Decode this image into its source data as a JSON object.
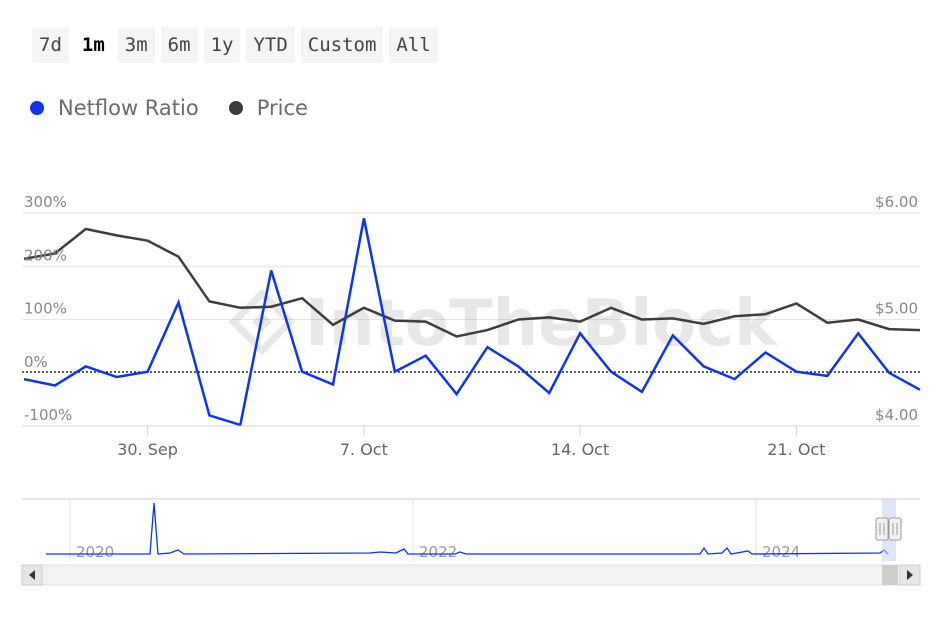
{
  "range_buttons": [
    {
      "label": "7d"
    },
    {
      "label": "1m",
      "active": true
    },
    {
      "label": "3m"
    },
    {
      "label": "6m"
    },
    {
      "label": "1y"
    },
    {
      "label": "YTD"
    },
    {
      "label": "Custom"
    },
    {
      "label": "All"
    }
  ],
  "watermark": "IntoTheBlock",
  "colors": {
    "netflow": "#1133ee",
    "price": "#3d3d3d",
    "grid": "#e6e6e6",
    "zero_line": "#000000"
  },
  "chart_data": {
    "type": "line",
    "x_ticks": [
      "30. Sep",
      "7. Oct",
      "14. Oct",
      "21. Oct"
    ],
    "y_left": {
      "ticks": [
        "300%",
        "200%",
        "100%",
        "0%",
        "-100%"
      ],
      "range": [
        -100,
        300
      ]
    },
    "y_right": {
      "ticks": [
        "$6.00",
        "$5.00",
        "$4.00"
      ],
      "range": [
        4.0,
        6.0
      ]
    },
    "x": [
      "2024-09-26",
      "2024-09-27",
      "2024-09-28",
      "2024-09-29",
      "2024-09-30",
      "2024-10-01",
      "2024-10-02",
      "2024-10-03",
      "2024-10-04",
      "2024-10-05",
      "2024-10-06",
      "2024-10-07",
      "2024-10-08",
      "2024-10-09",
      "2024-10-10",
      "2024-10-11",
      "2024-10-12",
      "2024-10-13",
      "2024-10-14",
      "2024-10-15",
      "2024-10-16",
      "2024-10-17",
      "2024-10-18",
      "2024-10-19",
      "2024-10-20",
      "2024-10-21",
      "2024-10-22",
      "2024-10-23",
      "2024-10-24",
      "2024-10-25"
    ],
    "series": [
      {
        "name": "Netflow Ratio",
        "axis": "left",
        "values": [
          -12,
          -24,
          12,
          -8,
          2,
          132,
          -80,
          -98,
          192,
          2,
          -22,
          290,
          2,
          32,
          -40,
          48,
          12,
          -38,
          74,
          2,
          -36,
          70,
          12,
          -12,
          38,
          2,
          -6,
          74,
          0,
          -32
        ]
      },
      {
        "name": "Price",
        "axis": "right",
        "values": [
          5.57,
          5.62,
          5.85,
          5.79,
          5.74,
          5.59,
          5.17,
          5.11,
          5.12,
          5.2,
          4.95,
          5.11,
          4.99,
          4.98,
          4.84,
          4.9,
          5.0,
          5.02,
          4.98,
          5.11,
          5.0,
          5.01,
          4.96,
          5.03,
          5.05,
          5.15,
          4.97,
          5.0,
          4.91,
          4.9
        ]
      }
    ],
    "navigator": {
      "year_labels": [
        "2020",
        "2022",
        "2024"
      ]
    },
    "legend": "top-left",
    "grid": true
  }
}
